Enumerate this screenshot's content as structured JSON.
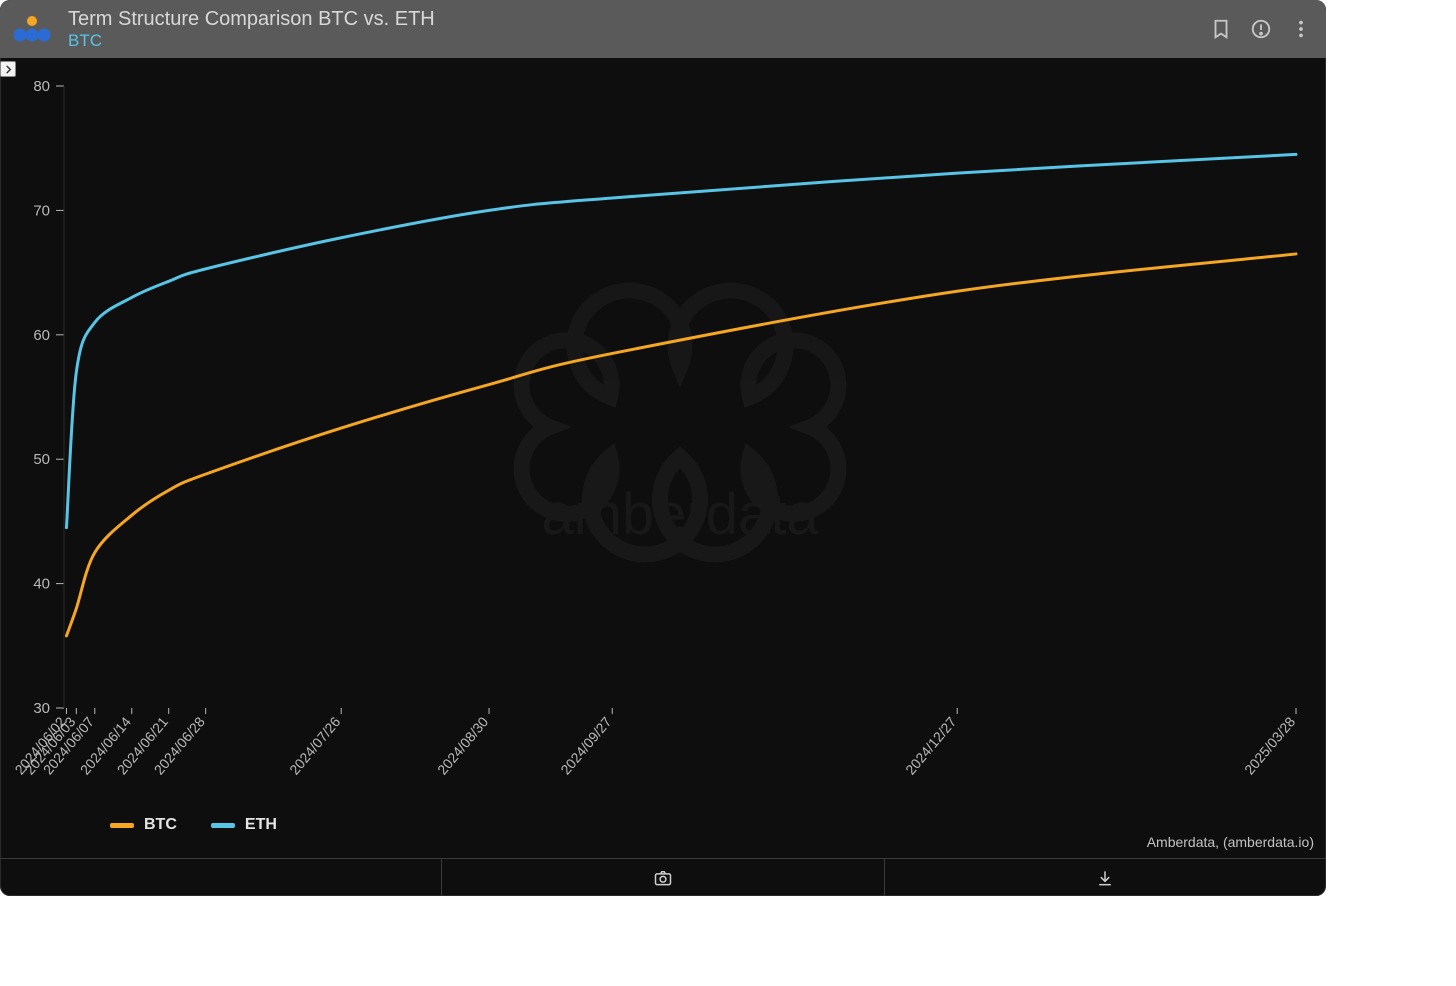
{
  "header": {
    "title": "Term Structure Comparison BTC vs. ETH",
    "subtitle": "BTC",
    "title_color": "#d8d8d8",
    "subtitle_color": "#58c4e6",
    "bg": "#5a5a5a"
  },
  "panel_bg": "#0e0e0e",
  "credit": "Amberdata, (amberdata.io)",
  "watermark_text": "amberdata",
  "chart": {
    "type": "line",
    "line_width": 3,
    "y": {
      "min": 30,
      "max": 80,
      "ticks": [
        30,
        40,
        50,
        60,
        70,
        80
      ]
    },
    "x_categories": [
      "2024/06/02",
      "2024/06/03",
      "2024/06/07",
      "2024/06/14",
      "2024/06/21",
      "2024/06/28",
      "2024/07/26",
      "2024/08/30",
      "2024/09/27",
      "2024/12/27",
      "2025/03/28"
    ],
    "x_positions": [
      0.002,
      0.01,
      0.025,
      0.055,
      0.085,
      0.115,
      0.225,
      0.345,
      0.445,
      0.725,
      1.0
    ],
    "series": [
      {
        "name": "BTC",
        "color": "#f5a623",
        "y": [
          35.8,
          38.0,
          42.5,
          45.5,
          47.5,
          48.8,
          52.5,
          56.0,
          58.5,
          63.5,
          66.5
        ]
      },
      {
        "name": "ETH",
        "color": "#58c4e6",
        "y": [
          44.5,
          57.0,
          61.0,
          63.0,
          64.3,
          65.3,
          67.8,
          70.0,
          71.0,
          73.0,
          74.5
        ]
      }
    ],
    "axis_color": "#b8b8b8",
    "grid_color": "#1a1a1a"
  },
  "legend": [
    {
      "label": "BTC",
      "color": "#f5a623"
    },
    {
      "label": "ETH",
      "color": "#58c4e6"
    }
  ]
}
